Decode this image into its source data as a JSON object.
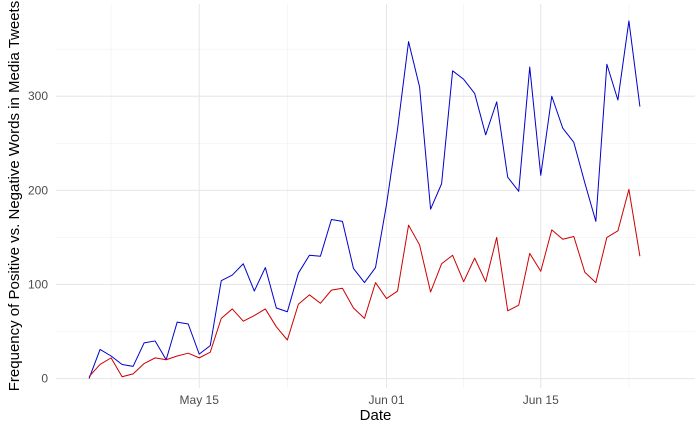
{
  "chart_data": {
    "type": "line",
    "title": "",
    "xlabel": "Date",
    "ylabel": "Frequency of Positive vs. Negative Words in Media Tweets",
    "x_start": "2021-05-05",
    "x_tick_labels": [
      "May 15",
      "Jun 01",
      "Jun 15"
    ],
    "x_tick_dates": [
      "2021-05-15",
      "2021-06-01",
      "2021-06-15"
    ],
    "x_grid_dates": [
      "2021-05-07",
      "2021-05-15",
      "2021-05-23",
      "2021-06-01",
      "2021-06-08",
      "2021-06-15",
      "2021-06-23"
    ],
    "y_ticks": [
      0,
      100,
      200,
      300
    ],
    "y_minor": [
      50,
      150,
      250,
      350
    ],
    "ylim": [
      -10,
      398
    ],
    "xlim": [
      "2021-05-02",
      "2021-06-29"
    ],
    "grid": true,
    "legend": "none",
    "series": [
      {
        "color": "#0000cd",
        "values": [
          0,
          31,
          24,
          15,
          13,
          38,
          40,
          20,
          60,
          58,
          26,
          35,
          104,
          110,
          122,
          93,
          118,
          75,
          71,
          112,
          131,
          130,
          169,
          167,
          117,
          102,
          118,
          185,
          265,
          358,
          310,
          180,
          207,
          327,
          318,
          303,
          259,
          294,
          214,
          199,
          331,
          216,
          300,
          266,
          251,
          208,
          167,
          334,
          296,
          380,
          289
        ]
      },
      {
        "color": "#cd0000",
        "values": [
          2,
          15,
          22,
          2,
          5,
          16,
          22,
          20,
          24,
          27,
          22,
          28,
          64,
          74,
          61,
          67,
          74,
          55,
          41,
          79,
          89,
          80,
          94,
          96,
          75,
          64,
          102,
          85,
          93,
          163,
          142,
          92,
          122,
          131,
          103,
          128,
          103,
          150,
          72,
          78,
          133,
          114,
          158,
          148,
          151,
          113,
          102,
          150,
          157,
          201,
          130
        ]
      }
    ]
  }
}
